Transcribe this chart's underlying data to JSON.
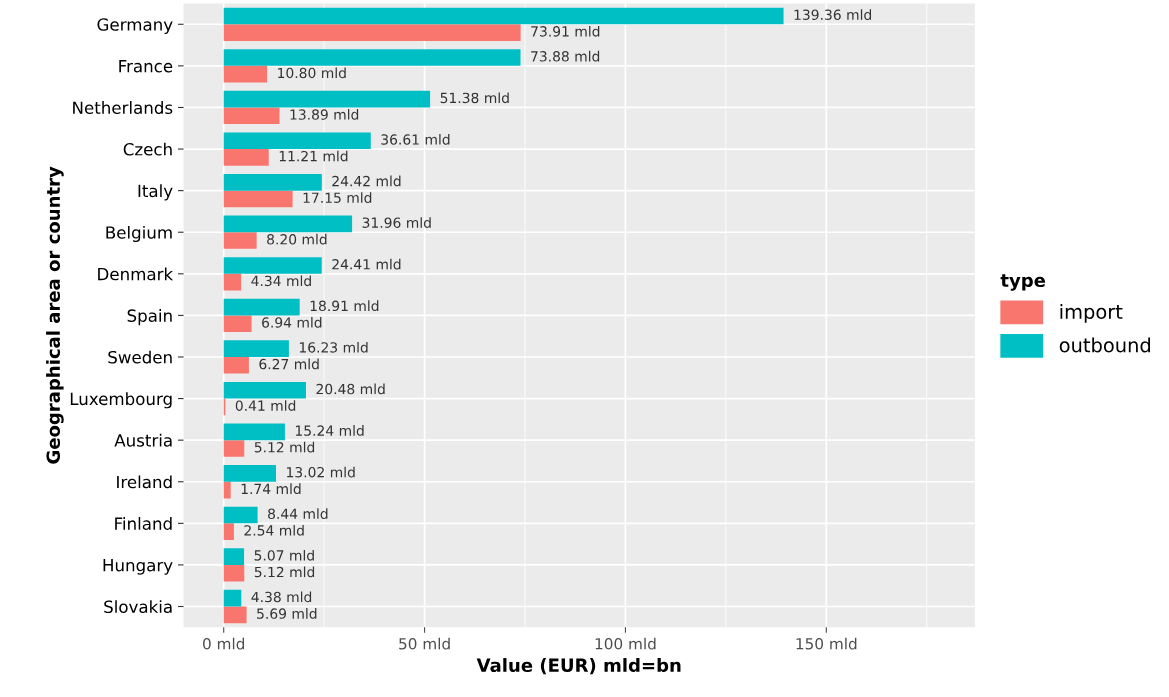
{
  "chart_data": {
    "type": "bar",
    "orientation": "horizontal",
    "categories": [
      "Germany",
      "France",
      "Netherlands",
      "Czech",
      "Italy",
      "Belgium",
      "Denmark",
      "Spain",
      "Sweden",
      "Luxembourg",
      "Austria",
      "Ireland",
      "Finland",
      "Hungary",
      "Slovakia"
    ],
    "series": [
      {
        "name": "import",
        "color": "#f8766d",
        "values": [
          73.91,
          10.8,
          13.89,
          11.21,
          17.15,
          8.2,
          4.34,
          6.94,
          6.27,
          0.41,
          5.12,
          1.74,
          2.54,
          5.12,
          5.69
        ],
        "value_labels": [
          "73.91 mld",
          "10.80 mld",
          "13.89 mld",
          "11.21 mld",
          "17.15 mld",
          "8.20 mld",
          "4.34 mld",
          "6.94 mld",
          "6.27 mld",
          "0.41 mld",
          "5.12 mld",
          "1.74 mld",
          "2.54 mld",
          "5.12 mld",
          "5.69 mld"
        ]
      },
      {
        "name": "outbound",
        "color": "#00bfc4",
        "values": [
          139.36,
          73.88,
          51.38,
          36.61,
          24.42,
          31.96,
          24.41,
          18.91,
          16.23,
          20.48,
          15.24,
          13.02,
          8.44,
          5.07,
          4.38
        ],
        "value_labels": [
          "139.36 mld",
          "73.88 mld",
          "51.38 mld",
          "36.61 mld",
          "24.42 mld",
          "31.96 mld",
          "24.41 mld",
          "18.91 mld",
          "16.23 mld",
          "20.48 mld",
          "15.24 mld",
          "13.02 mld",
          "8.44 mld",
          "5.07 mld",
          "4.38 mld"
        ]
      }
    ],
    "xlim": [
      -10,
      187
    ],
    "xticks": [
      {
        "value": 0,
        "label": "0 mld"
      },
      {
        "value": 50,
        "label": "50 mld"
      },
      {
        "value": 100,
        "label": "100 mld"
      },
      {
        "value": 150,
        "label": "150 mld"
      }
    ],
    "xlabel": "Value (EUR) mld=bn",
    "ylabel": "Geographical area or country",
    "legend_title": "type",
    "legend": "right",
    "grid": true
  }
}
